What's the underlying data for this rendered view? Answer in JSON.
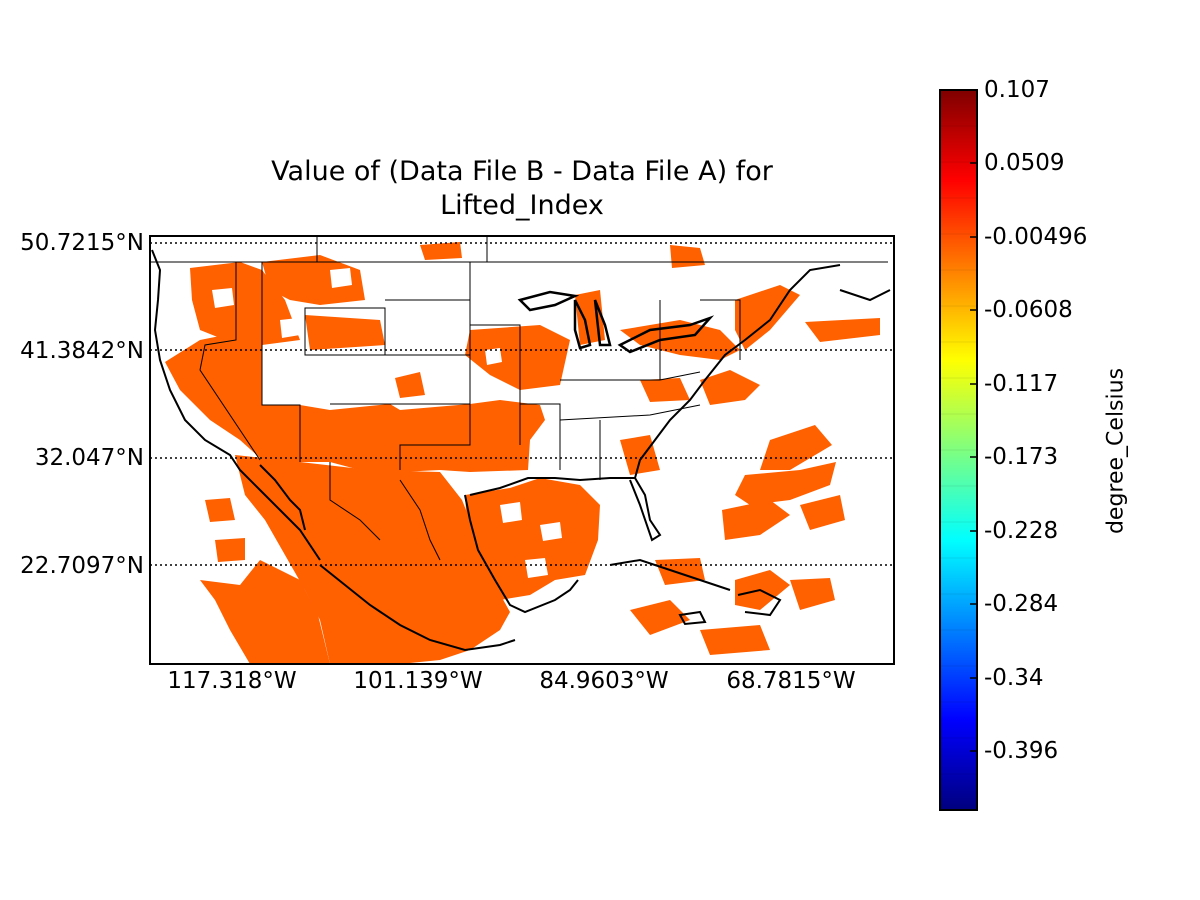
{
  "title_line1": "Value of (Data File B - Data File A) for",
  "title_line2": "Lifted_Index",
  "lat_labels": [
    "50.7215°N",
    "41.3842°N",
    "32.047°N",
    "22.7097°N"
  ],
  "lon_labels": [
    "117.318°W",
    "101.139°W",
    "84.9603°W",
    "68.7815°W"
  ],
  "colorbar": {
    "label": "degree_Celsius",
    "ticks": [
      "0.107",
      "0.0509",
      "-0.00496",
      "-0.0608",
      "-0.117",
      "-0.173",
      "-0.228",
      "-0.284",
      "-0.34",
      "-0.396"
    ],
    "fill_color": "#ff6000",
    "colormap": "jet"
  },
  "chart_data": {
    "type": "heatmap",
    "title": "Value of (Data File B - Data File A) for Lifted_Index",
    "ylabel_ticks": [
      "50.7215°N",
      "41.3842°N",
      "32.047°N",
      "22.7097°N"
    ],
    "xlabel_ticks": [
      "117.318°W",
      "101.139°W",
      "84.9603°W",
      "68.7815°W"
    ],
    "latitudes": [
      50.7215,
      41.3842,
      32.047,
      22.7097
    ],
    "longitudes": [
      -117.318,
      -101.139,
      -84.9603,
      -68.7815
    ],
    "colorbar_ticks": [
      0.107,
      0.0509,
      -0.00496,
      -0.0608,
      -0.117,
      -0.173,
      -0.228,
      -0.284,
      -0.34,
      -0.396
    ],
    "dominant_value_approx": -0.01,
    "grid": true,
    "colorbar_label": "degree_Celsius"
  }
}
